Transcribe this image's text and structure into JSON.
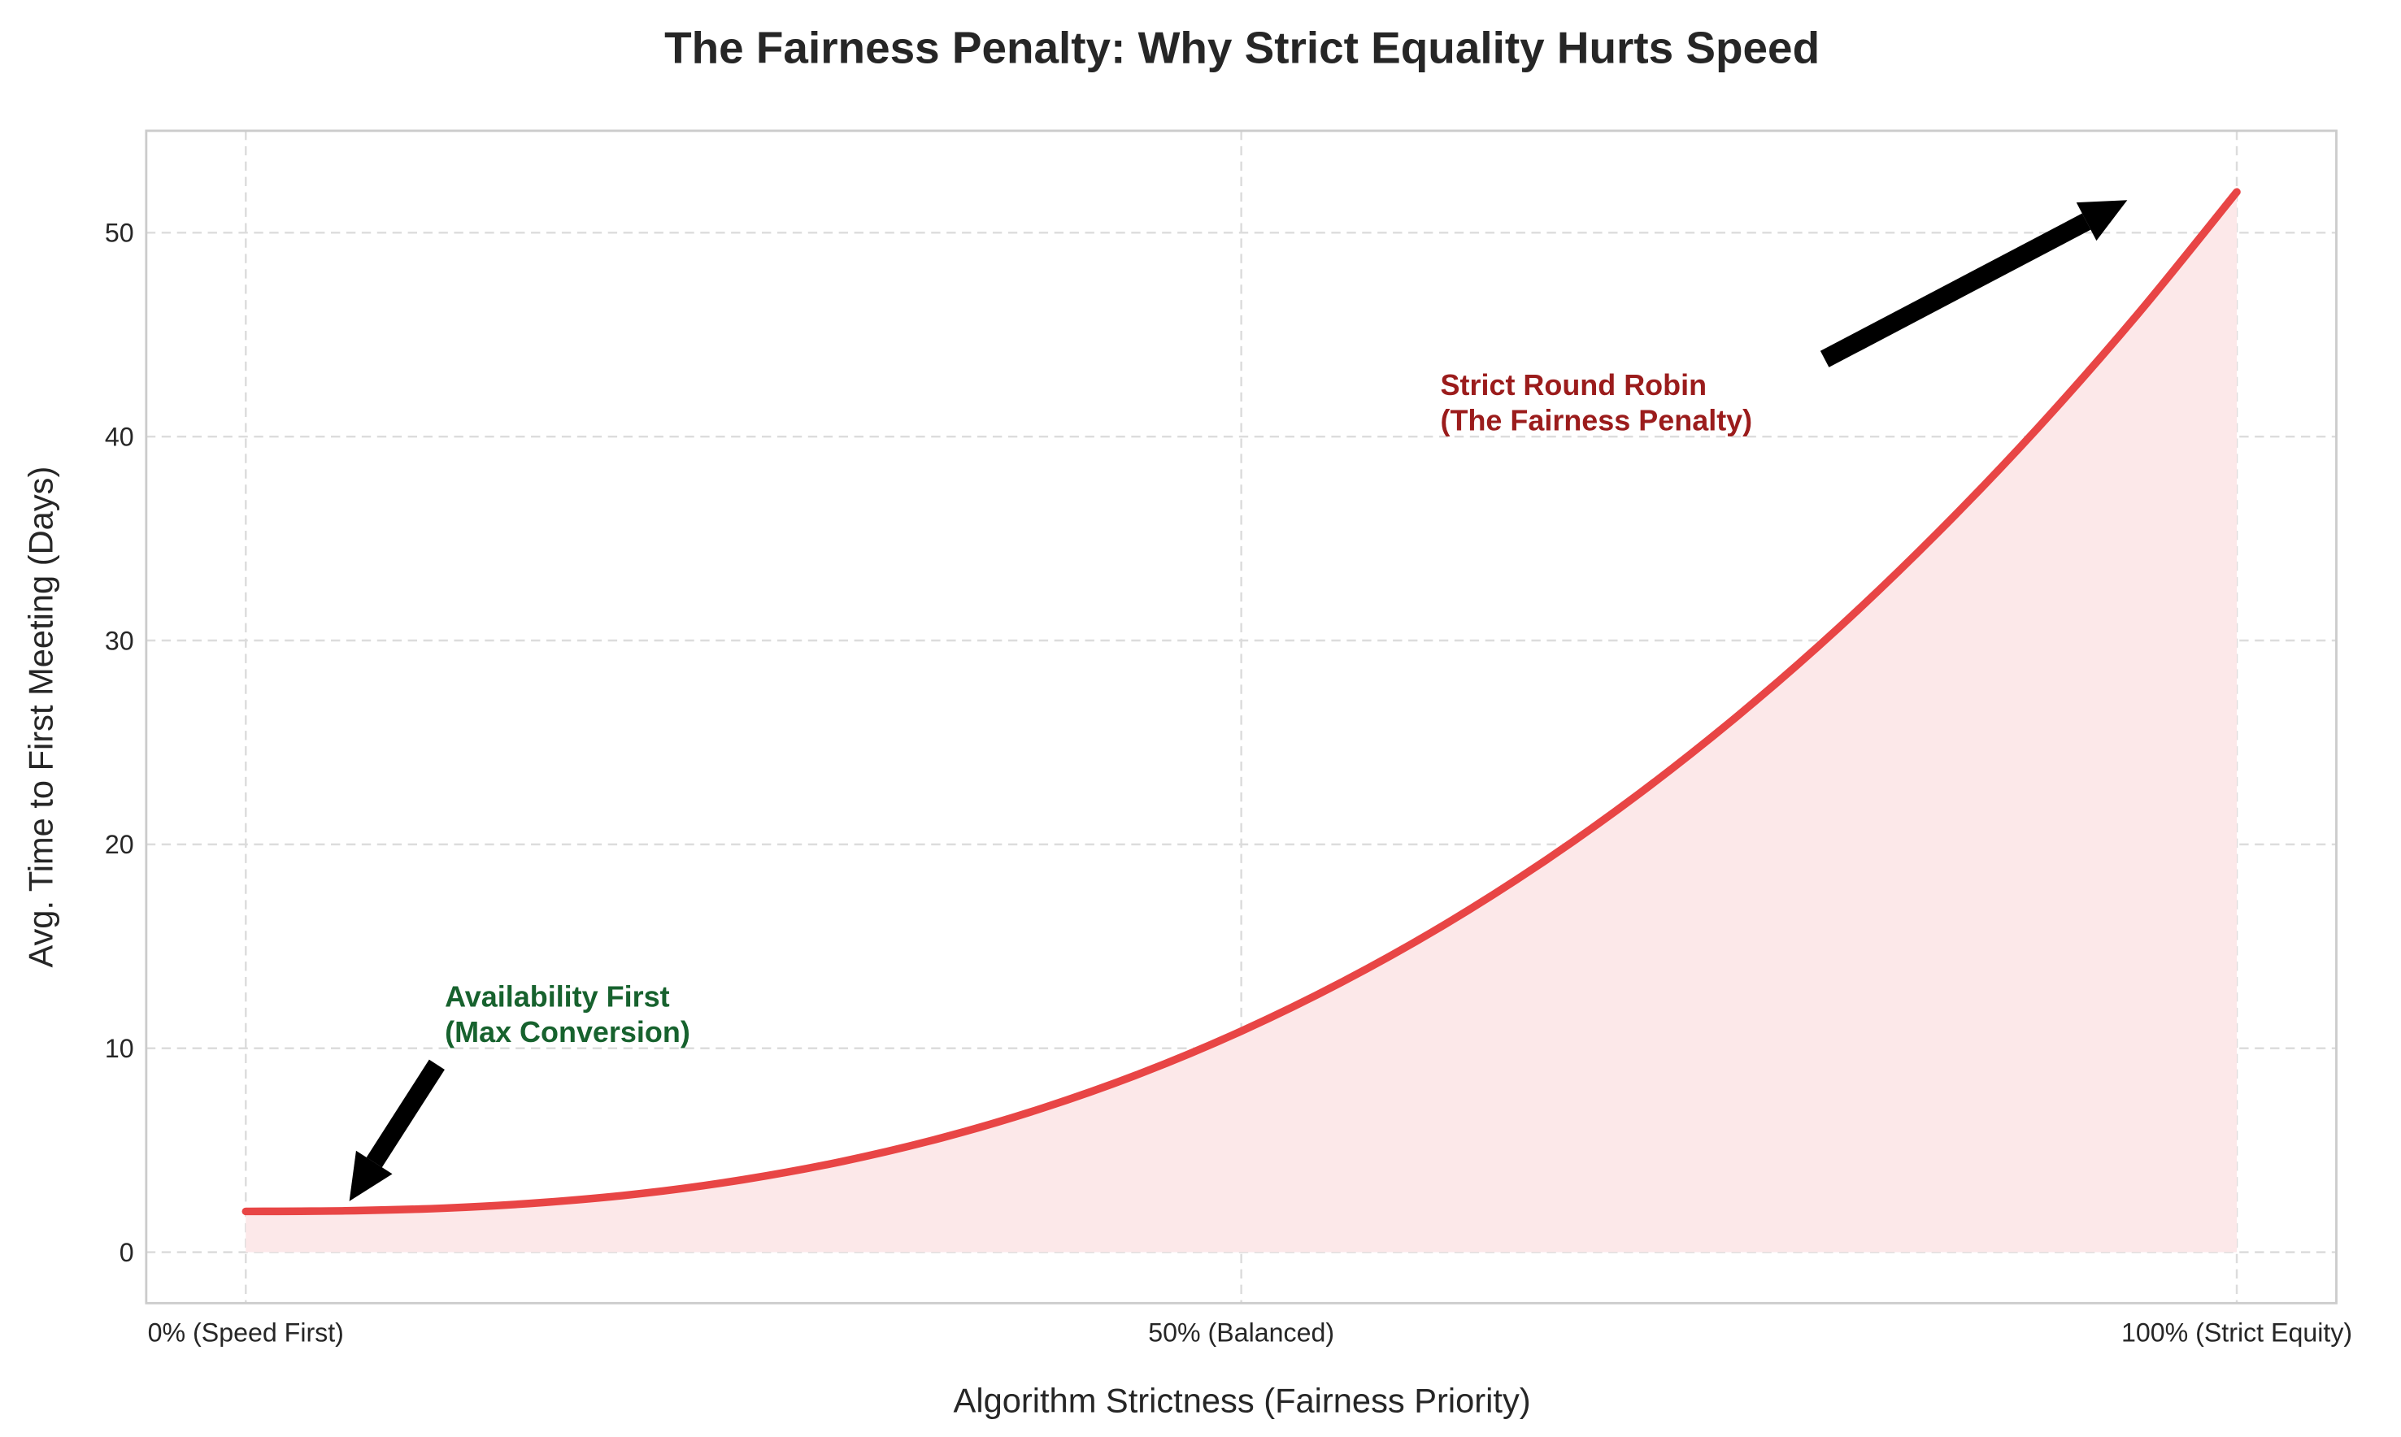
{
  "chart_data": {
    "type": "area",
    "title": "The Fairness Penalty: Why Strict Equality Hurts Speed",
    "xlabel": "Algorithm Strictness (Fairness Priority)",
    "ylabel": "Avg. Time to First Meeting (Days)",
    "xlim": [
      -5,
      105
    ],
    "ylim": [
      -2.5,
      55
    ],
    "grid": true,
    "x_ticks": [
      {
        "value": 0,
        "label": "0% (Speed First)"
      },
      {
        "value": 50,
        "label": "50% (Balanced)"
      },
      {
        "value": 100,
        "label": "100% (Strict Equity)"
      }
    ],
    "y_ticks": [
      0,
      10,
      20,
      30,
      40,
      50
    ],
    "series": [
      {
        "color": "#e84545",
        "fill_color": "#fce8e9",
        "x": [
          0,
          5,
          10,
          15,
          20,
          25,
          30,
          35,
          40,
          45,
          50,
          55,
          60,
          65,
          70,
          75,
          80,
          85,
          90,
          95,
          100
        ],
        "y": [
          2,
          2.03,
          2.16,
          2.44,
          2.89,
          3.56,
          4.46,
          5.62,
          7.06,
          8.79,
          10.84,
          13.22,
          15.94,
          19.03,
          22.5,
          26.36,
          30.62,
          35.31,
          40.42,
          45.98,
          52
        ]
      }
    ],
    "annotations": [
      {
        "text_lines": [
          "Availability First",
          "(Max Conversion)"
        ],
        "color": "#17622e",
        "text_at": [
          10,
          10
        ],
        "arrow_from": [
          9.6,
          9.2
        ],
        "arrow_to": [
          5.2,
          2.5
        ]
      },
      {
        "text_lines": [
          "Strict Round Robin",
          "(The Fairness Penalty)"
        ],
        "color": "#9b1c1c",
        "text_at": [
          60,
          40
        ],
        "arrow_from": [
          79.3,
          43.8
        ],
        "arrow_to": [
          94.5,
          51.6
        ]
      }
    ]
  }
}
